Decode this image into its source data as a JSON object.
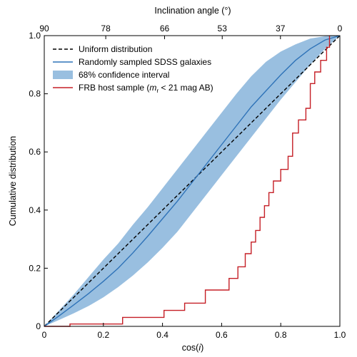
{
  "chart_data": {
    "type": "line",
    "x_axis": {
      "label": "cos(i)",
      "label_main": "cos(",
      "label_italic": "i",
      "label_close": ")",
      "lim": [
        0,
        1
      ],
      "ticks": [
        0,
        0.2,
        0.4,
        0.6,
        0.8,
        1.0
      ],
      "tick_labels": [
        "0",
        "0.2",
        "0.4",
        "0.6",
        "0.8",
        "1.0"
      ]
    },
    "y_axis": {
      "label": "Cumulative distribution",
      "lim": [
        0,
        1
      ],
      "ticks": [
        0,
        0.2,
        0.4,
        0.6,
        0.8,
        1.0
      ],
      "tick_labels": [
        "0",
        "0.2",
        "0.4",
        "0.6",
        "0.8",
        "1.0"
      ]
    },
    "top_axis": {
      "label": "Inclination angle (°)",
      "ticks": [
        0,
        0.208,
        0.407,
        0.602,
        0.799,
        1.0
      ],
      "tick_labels": [
        "90",
        "78",
        "66",
        "53",
        "37",
        "0"
      ]
    },
    "legend": {
      "placement": "top-left",
      "entries": [
        {
          "name": "Uniform distribution",
          "style": "dashed-line",
          "color": "#000000"
        },
        {
          "name": "Randomly sampled SDSS galaxies",
          "style": "line",
          "color": "#2f73b8"
        },
        {
          "name": "68% confidence interval",
          "style": "patch",
          "color": "#99bfe0"
        },
        {
          "name": "FRB host sample (m_r < 21 mag AB)",
          "style": "line",
          "color": "#c51f26",
          "text_pre": "FRB host sample (",
          "text_italic": "m",
          "text_sub": "r",
          "text_post": " < 21 mag AB)"
        }
      ]
    },
    "series": [
      {
        "name": "Uniform distribution",
        "style": "dashed",
        "color": "#000000",
        "x": [
          0,
          1
        ],
        "y": [
          0,
          1
        ]
      },
      {
        "name": "Randomly sampled SDSS galaxies",
        "style": "line",
        "color": "#2f73b8",
        "x": [
          0,
          0.05,
          0.1,
          0.15,
          0.2,
          0.25,
          0.3,
          0.35,
          0.4,
          0.45,
          0.5,
          0.55,
          0.6,
          0.65,
          0.7,
          0.75,
          0.8,
          0.85,
          0.9,
          0.95,
          1.0
        ],
        "y": [
          0,
          0.036,
          0.074,
          0.113,
          0.155,
          0.2,
          0.253,
          0.31,
          0.37,
          0.43,
          0.495,
          0.56,
          0.625,
          0.69,
          0.755,
          0.81,
          0.865,
          0.915,
          0.955,
          0.985,
          1.0
        ]
      },
      {
        "name": "68% confidence interval",
        "style": "band",
        "color": "#99bfe0",
        "x": [
          0,
          0.05,
          0.1,
          0.15,
          0.2,
          0.25,
          0.3,
          0.35,
          0.4,
          0.45,
          0.5,
          0.55,
          0.6,
          0.65,
          0.7,
          0.75,
          0.8,
          0.85,
          0.9,
          0.95,
          1.0
        ],
        "lower": [
          0,
          0.022,
          0.045,
          0.07,
          0.1,
          0.135,
          0.175,
          0.22,
          0.27,
          0.325,
          0.39,
          0.455,
          0.52,
          0.585,
          0.65,
          0.715,
          0.78,
          0.84,
          0.9,
          0.955,
          1.0
        ],
        "upper": [
          0,
          0.055,
          0.11,
          0.17,
          0.23,
          0.285,
          0.35,
          0.41,
          0.475,
          0.54,
          0.605,
          0.67,
          0.735,
          0.8,
          0.86,
          0.91,
          0.945,
          0.97,
          0.99,
          0.998,
          1.0
        ]
      },
      {
        "name": "FRB host sample (m_r < 21 mag AB)",
        "style": "step",
        "color": "#c51f26",
        "x": [
          0,
          0.087,
          0.087,
          0.265,
          0.265,
          0.405,
          0.405,
          0.475,
          0.475,
          0.545,
          0.545,
          0.625,
          0.625,
          0.655,
          0.655,
          0.68,
          0.68,
          0.7,
          0.7,
          0.715,
          0.715,
          0.73,
          0.73,
          0.745,
          0.745,
          0.76,
          0.76,
          0.775,
          0.775,
          0.8,
          0.8,
          0.825,
          0.825,
          0.84,
          0.84,
          0.86,
          0.86,
          0.885,
          0.885,
          0.915,
          0.915,
          0.955,
          0.955,
          0.965,
          0.965,
          1.0
        ],
        "y": [
          0,
          0,
          0.008,
          0.008,
          0.031,
          0.031,
          0.055,
          0.055,
          0.08,
          0.08,
          0.125,
          0.125,
          0.165,
          0.165,
          0.205,
          0.205,
          0.25,
          0.25,
          0.29,
          0.29,
          0.33,
          0.33,
          0.375,
          0.375,
          0.415,
          0.415,
          0.46,
          0.46,
          0.5,
          0.5,
          0.54,
          0.54,
          0.585,
          0.585,
          0.625,
          0.625,
          0.665,
          0.665,
          0.71,
          0.71,
          0.75,
          0.75,
          0.795,
          0.795,
          0.835,
          0.835
        ]
      }
    ],
    "frb_step_extra": {
      "x": [
        0.84,
        0.84,
        0.86,
        0.86,
        0.885,
        0.885,
        0.9,
        0.9,
        0.915,
        0.915,
        0.935,
        0.935,
        0.955,
        0.955,
        0.965,
        0.965
      ],
      "y": [
        0.625,
        0.665,
        0.665,
        0.71,
        0.71,
        0.75,
        0.75,
        0.835,
        0.835,
        0.875,
        0.875,
        0.915,
        0.915,
        0.96,
        0.96,
        1.0
      ]
    },
    "grid": false
  }
}
